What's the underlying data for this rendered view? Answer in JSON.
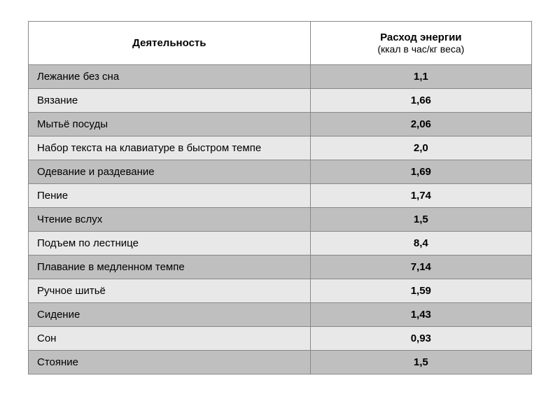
{
  "headers": {
    "activity": "Деятельность",
    "energy_main": "Расход энергии",
    "energy_sub": "(ккал в час/кг веса)"
  },
  "rows": [
    {
      "activity": "Лежание без сна",
      "value": "1,1",
      "shade": "dark"
    },
    {
      "activity": "Вязание",
      "value": "1,66",
      "shade": "light"
    },
    {
      "activity": "Мытьё посуды",
      "value": "2,06",
      "shade": "dark"
    },
    {
      "activity": "Набор текста на клавиатуре в быстром темпе",
      "value": "2,0",
      "shade": "light"
    },
    {
      "activity": "Одевание и раздевание",
      "value": "1,69",
      "shade": "dark"
    },
    {
      "activity": "Пение",
      "value": "1,74",
      "shade": "light"
    },
    {
      "activity": "Чтение вслух",
      "value": "1,5",
      "shade": "dark"
    },
    {
      "activity": "Подъем по лестнице",
      "value": "8,4",
      "shade": "light"
    },
    {
      "activity": "Плавание в медленном темпе",
      "value": "7,14",
      "shade": "dark"
    },
    {
      "activity": "Ручное шитьё",
      "value": "1,59",
      "shade": "light"
    },
    {
      "activity": "Сидение",
      "value": "1,43",
      "shade": "dark"
    },
    {
      "activity": "Сон",
      "value": "0,93",
      "shade": "light"
    },
    {
      "activity": "Стояние",
      "value": "1,5",
      "shade": "dark"
    }
  ]
}
